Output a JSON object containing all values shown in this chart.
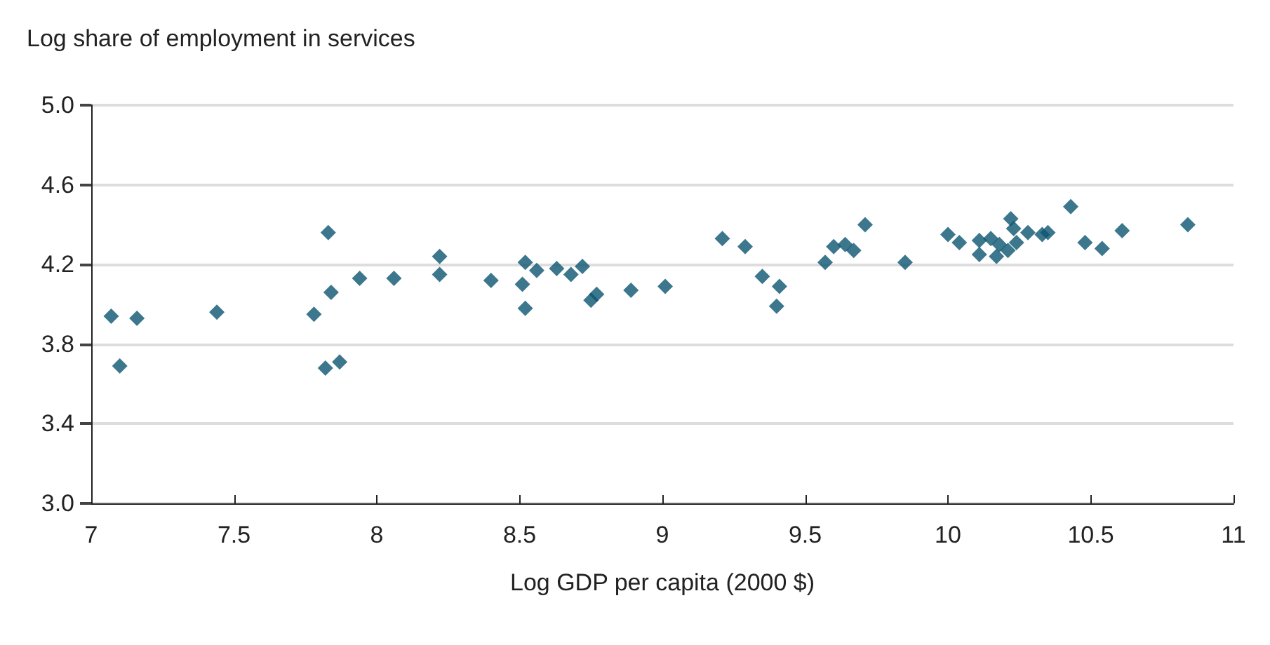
{
  "chart_data": {
    "type": "scatter",
    "ylabel": "Log share of employment in services",
    "xlabel": "Log GDP per capita (2000 $)",
    "x": [
      7.07,
      7.1,
      7.16,
      7.44,
      7.78,
      7.83,
      7.84,
      7.82,
      7.87,
      7.94,
      8.06,
      8.22,
      8.22,
      8.4,
      8.51,
      8.52,
      8.52,
      8.56,
      8.63,
      8.68,
      8.72,
      8.75,
      8.77,
      8.89,
      9.01,
      9.21,
      9.29,
      9.35,
      9.41,
      9.4,
      9.57,
      9.6,
      9.64,
      9.67,
      9.71,
      9.85,
      10.0,
      10.04,
      10.11,
      10.11,
      10.15,
      10.18,
      10.17,
      10.21,
      10.22,
      10.23,
      10.24,
      10.28,
      10.33,
      10.35,
      10.43,
      10.48,
      10.54,
      10.61,
      10.84
    ],
    "values": [
      3.94,
      3.69,
      3.93,
      3.96,
      3.95,
      4.36,
      4.06,
      3.68,
      3.71,
      4.13,
      4.13,
      4.24,
      4.15,
      4.12,
      4.1,
      4.21,
      3.98,
      4.17,
      4.18,
      4.15,
      4.19,
      4.02,
      4.05,
      4.07,
      4.09,
      4.33,
      4.29,
      4.14,
      4.09,
      3.99,
      4.21,
      4.29,
      4.3,
      4.27,
      4.4,
      4.21,
      4.35,
      4.31,
      4.32,
      4.25,
      4.33,
      4.3,
      4.24,
      4.27,
      4.43,
      4.38,
      4.31,
      4.36,
      4.35,
      4.36,
      4.49,
      4.31,
      4.28,
      4.37,
      4.4
    ],
    "color": "#0b5570",
    "marker": "diamond",
    "grid": "y",
    "xlim": [
      7,
      11
    ],
    "xticks": [
      7,
      7.5,
      8,
      8.5,
      9,
      9.5,
      10,
      10.5,
      11
    ],
    "ylim": [
      3,
      5
    ],
    "yticks": [
      {
        "value": 3,
        "label": "3.0"
      },
      3.4,
      3.8,
      4.2,
      4.6,
      {
        "value": 5,
        "label": "5.0"
      }
    ]
  }
}
